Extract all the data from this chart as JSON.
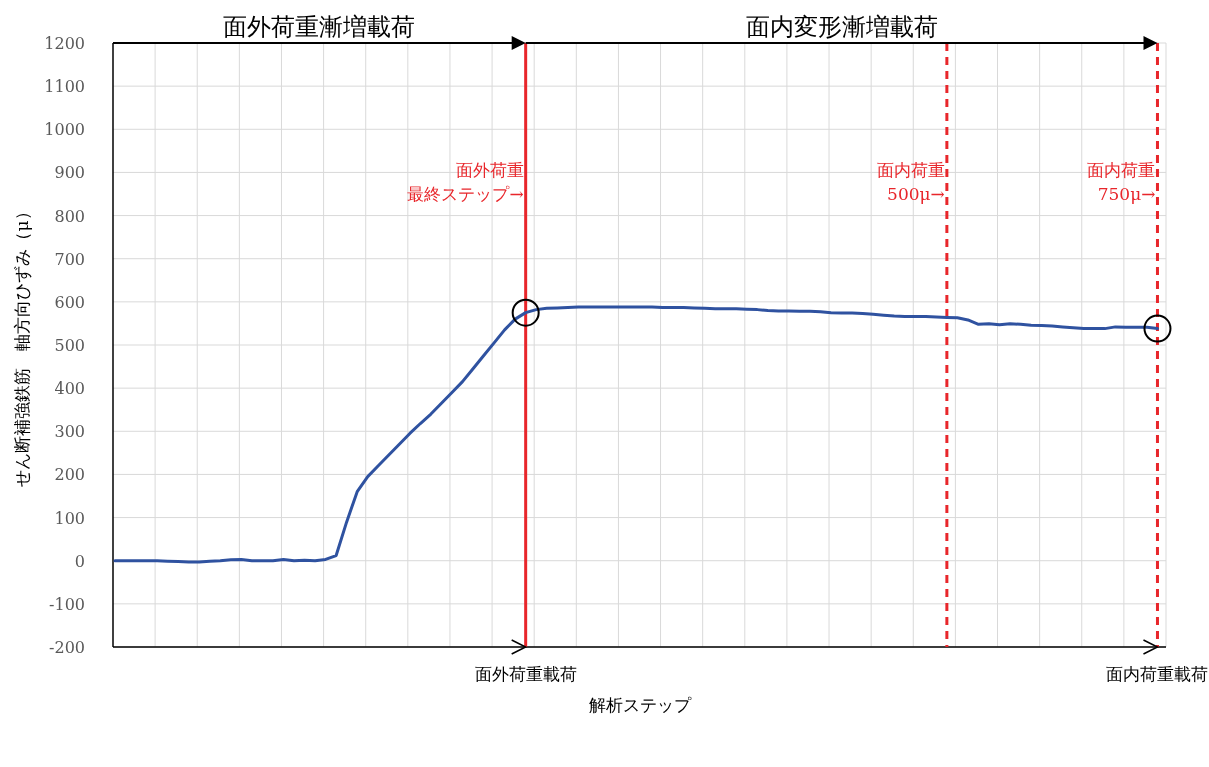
{
  "chart_data": {
    "type": "line",
    "xlabel": "解析ステップ",
    "ylabel": "せん断補強鉄筋　軸方向ひずみ（μ）",
    "categories": [
      null,
      null,
      null,
      null,
      null,
      null,
      null,
      null,
      null,
      null,
      null,
      null,
      null,
      null,
      null,
      null,
      null,
      null,
      null,
      null,
      null,
      null,
      null,
      null,
      null,
      null,
      null,
      null,
      null,
      null,
      null,
      null,
      null,
      null,
      null,
      null,
      null,
      null,
      null,
      null,
      null,
      null,
      null,
      null,
      null,
      null,
      null,
      null,
      null,
      null,
      null,
      null,
      null,
      null,
      null,
      null,
      null,
      null,
      null,
      null,
      null,
      null,
      null,
      null,
      null,
      null,
      null,
      null,
      null,
      null,
      null,
      null,
      null,
      null,
      null,
      null,
      null,
      null,
      null,
      null,
      null,
      null,
      null,
      null,
      null,
      null,
      null,
      null,
      null,
      null,
      null,
      null,
      null,
      null,
      null,
      null,
      null,
      null,
      null,
      null
    ],
    "ylim": [
      -200,
      1200
    ],
    "yticks": [
      -200,
      -100,
      0,
      100,
      200,
      300,
      400,
      500,
      600,
      700,
      800,
      900,
      1000,
      1100,
      1200
    ],
    "tick_labels": "y",
    "grid": true,
    "line_style": "solid",
    "series": [
      {
        "color": "#2f52a0",
        "values": [
          0,
          0,
          0,
          0,
          0,
          -1,
          -2,
          -3,
          -3,
          -1,
          0,
          2,
          3,
          0,
          0,
          0,
          3,
          0,
          1,
          0,
          3,
          12,
          90,
          160,
          195,
          220,
          245,
          270,
          295,
          318,
          340,
          365,
          390,
          415,
          445,
          475,
          505,
          535,
          560,
          575,
          582,
          585,
          586,
          587,
          588,
          588,
          588,
          588,
          588,
          588,
          588,
          588,
          587,
          587,
          587,
          586,
          585,
          584,
          584,
          584,
          583,
          582,
          580,
          579,
          579,
          578,
          578,
          577,
          575,
          574,
          574,
          573,
          571,
          569,
          567,
          566,
          566,
          566,
          565,
          564,
          563,
          558,
          548,
          549,
          547,
          549,
          548,
          546,
          545,
          544,
          542,
          540,
          538,
          538,
          538,
          542,
          541,
          541,
          541,
          538
        ]
      }
    ],
    "annotations": [
      "面外荷重漸増載荷",
      "面内変形漸増載荷",
      "面外荷重最終ステップ→",
      "面内荷重500μ→",
      "面内荷重750μ→",
      "面外荷重載荷",
      "面内荷重載荷"
    ]
  }
}
